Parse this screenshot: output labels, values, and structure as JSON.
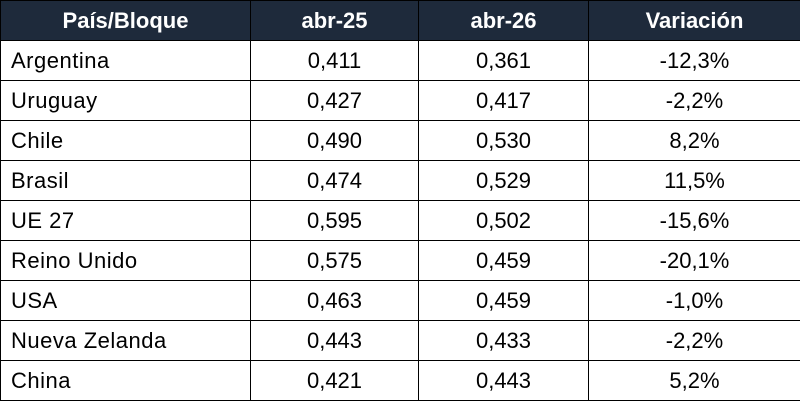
{
  "table": {
    "header": [
      "País/Bloque",
      "abr-25",
      "abr-26",
      "Variación"
    ],
    "rows": [
      [
        "Argentina",
        "0,411",
        "0,361",
        "-12,3%"
      ],
      [
        "Uruguay",
        "0,427",
        "0,417",
        "-2,2%"
      ],
      [
        "Chile",
        "0,490",
        "0,530",
        "8,2%"
      ],
      [
        "Brasil",
        "0,474",
        "0,529",
        "11,5%"
      ],
      [
        "UE 27",
        "0,595",
        "0,502",
        "-15,6%"
      ],
      [
        "Reino Unido",
        "0,575",
        "0,459",
        "-20,1%"
      ],
      [
        "USA",
        "0,463",
        "0,459",
        "-1,0%"
      ],
      [
        "Nueva Zelanda",
        "0,443",
        "0,433",
        "-2,2%"
      ],
      [
        "China",
        "0,421",
        "0,443",
        "5,2%"
      ]
    ]
  }
}
